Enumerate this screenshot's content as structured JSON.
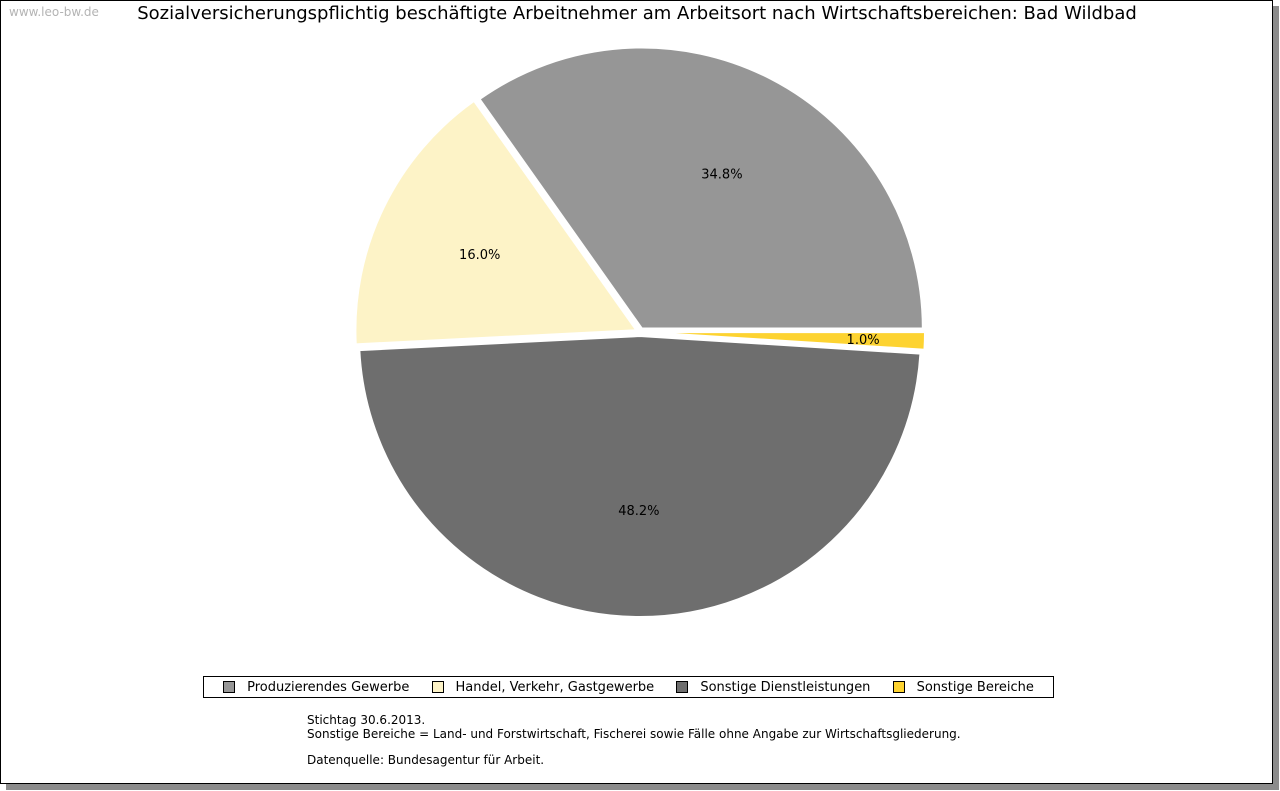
{
  "watermark": "www.leo-bw.de",
  "chart_data": {
    "type": "pie",
    "title": "Sozialversicherungspflichtig beschäftigte Arbeitnehmer am Arbeitsort nach Wirtschaftsbereichen: Bad Wildbad",
    "slices": [
      {
        "name": "Produzierendes Gewerbe",
        "value": 34.8,
        "label": "34.8%",
        "color": "#969696"
      },
      {
        "name": "Handel, Verkehr, Gastgewerbe",
        "value": 16.0,
        "label": "16.0%",
        "color": "#fdf3c7"
      },
      {
        "name": "Sonstige Dienstleistungen",
        "value": 48.2,
        "label": "48.2%",
        "color": "#6e6e6e"
      },
      {
        "name": "Sonstige Bereiche",
        "value": 1.0,
        "label": "1.0%",
        "color": "#fdd331"
      }
    ],
    "start_direction": "east",
    "order": "counterclockwise",
    "exploded": true,
    "legend_position": "bottom"
  },
  "notes": {
    "line1": "Stichtag 30.6.2013.",
    "line2": "Sonstige Bereiche = Land- und Forstwirtschaft, Fischerei sowie Fälle ohne Angabe zur Wirtschaftsgliederung.",
    "line3": "Datenquelle: Bundesagentur für Arbeit."
  }
}
